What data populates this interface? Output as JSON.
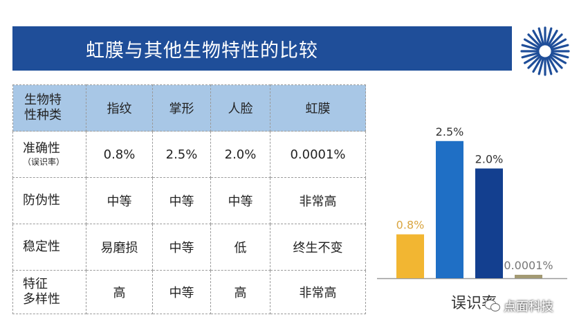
{
  "title": "虹膜与其他生物特性的比较",
  "table": {
    "header_label": [
      "生物特",
      "性种类"
    ],
    "columns": [
      "指纹",
      "掌形",
      "人脸",
      "虹膜"
    ],
    "rows": [
      {
        "label": [
          "准确性"
        ],
        "sublabel": "（误识率）",
        "values": [
          "0.8%",
          "2.5%",
          "2.0%",
          "0.0001%"
        ]
      },
      {
        "label": [
          "防伪性"
        ],
        "values": [
          "中等",
          "中等",
          "中等",
          "非常高"
        ]
      },
      {
        "label": [
          "稳定性"
        ],
        "values": [
          "易磨损",
          "中等",
          "低",
          "终生不变"
        ]
      },
      {
        "label": [
          "特征",
          "多样性"
        ],
        "values": [
          "高",
          "中等",
          "高",
          "非常高"
        ]
      }
    ]
  },
  "chart_data": {
    "type": "bar",
    "categories": [
      "指纹",
      "掌形",
      "人脸",
      "虹膜"
    ],
    "values": [
      0.8,
      2.5,
      2.0,
      0.0001
    ],
    "data_labels": [
      "0.8%",
      "2.5%",
      "2.0%",
      "0.0001%"
    ],
    "colors": [
      "#f2b632",
      "#1f6fc5",
      "#133f8f",
      "#a39a73"
    ],
    "xlabel": "误识率",
    "ylim": [
      0,
      2.8
    ],
    "grid": false,
    "legend": "none"
  },
  "watermark": "点面科技",
  "icons": {
    "logo": "sunburst-logo",
    "watermark_icon": "wechat-icon"
  },
  "colors": {
    "title_bar": "#1f4e99",
    "table_header": "#a8c7e6"
  }
}
